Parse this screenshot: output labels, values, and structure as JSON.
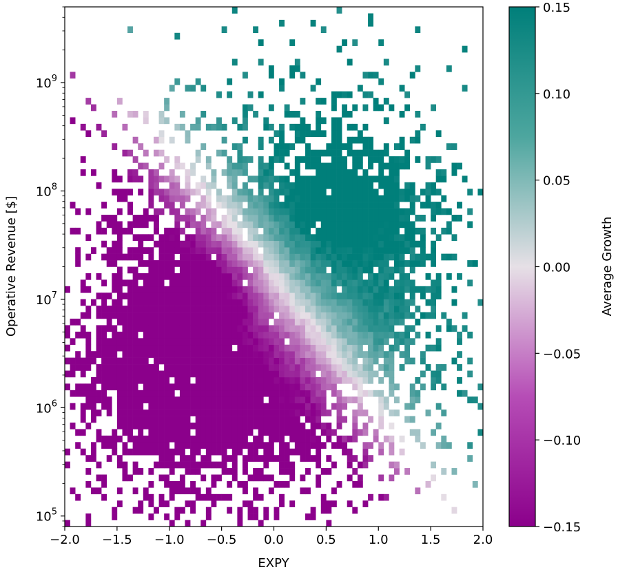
{
  "chart_data": {
    "type": "heatmap",
    "xlabel": "EXPY",
    "ylabel": "Operative Revenue [$]",
    "xlim": [
      -2.0,
      2.0
    ],
    "ylim": [
      80000,
      5000000000
    ],
    "yscale": "log",
    "x_ticks": [
      -2.0,
      -1.5,
      -1.0,
      -0.5,
      0.0,
      0.5,
      1.0,
      1.5,
      2.0
    ],
    "x_tick_labels": [
      "−2.0",
      "−1.5",
      "−1.0",
      "−0.5",
      "0.0",
      "0.5",
      "1.0",
      "1.5",
      "2.0"
    ],
    "y_ticks": [
      100000,
      1000000,
      10000000,
      100000000,
      1000000000
    ],
    "y_tick_labels": [
      {
        "base": "10",
        "exp": "5"
      },
      {
        "base": "10",
        "exp": "6"
      },
      {
        "base": "10",
        "exp": "7"
      },
      {
        "base": "10",
        "exp": "8"
      },
      {
        "base": "10",
        "exp": "9"
      }
    ],
    "colorbar": {
      "label": "Average Growth",
      "range": [
        -0.15,
        0.15
      ],
      "ticks": [
        -0.15,
        -0.1,
        -0.05,
        0.0,
        0.05,
        0.1,
        0.15
      ],
      "tick_labels": [
        "−0.15",
        "−0.10",
        "−0.05",
        "0.00",
        "0.05",
        "0.10",
        "0.15"
      ],
      "colormap": {
        "low": "#8b008b",
        "mid": "#e6e0e6",
        "high": "#007f7a"
      }
    },
    "bins": {
      "x_count": 80,
      "y_count": 80
    },
    "grid": false,
    "description_of_field": "Binned average growth: negative (purple) concentrated at low EXPY and low revenue; positive (teal) at EXPY 0.3–1.3 and revenue 1e6.5–1e8.8; near-zero along the diagonal boundary."
  }
}
